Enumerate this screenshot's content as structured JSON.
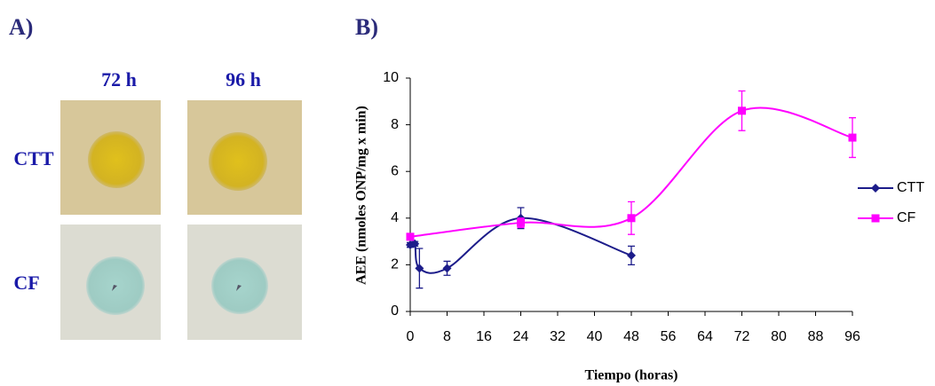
{
  "panel_a": {
    "label": "A)",
    "columns": [
      "72 h",
      "96 h"
    ],
    "rows": [
      "CTT",
      "CF"
    ]
  },
  "chart_data": {
    "type": "line",
    "label": "B)",
    "x_label": "Tiempo (horas)",
    "y_label": "AEE (nmoles ONP/mg x min)",
    "xlim": [
      0,
      96
    ],
    "xticks": [
      0,
      8,
      16,
      24,
      32,
      40,
      48,
      56,
      64,
      72,
      80,
      88,
      96
    ],
    "ylim": [
      0,
      10
    ],
    "yticks": [
      0,
      2,
      4,
      6,
      8,
      10
    ],
    "legend": "right",
    "series": [
      {
        "name": "CTT",
        "color": "#1c1c8a",
        "marker": "diamond",
        "x": [
          0,
          1,
          2,
          8,
          24,
          48
        ],
        "values": [
          2.85,
          2.9,
          1.85,
          1.85,
          4.0,
          2.4
        ],
        "errors": [
          0.1,
          0.1,
          0.85,
          0.3,
          0.45,
          0.4
        ]
      },
      {
        "name": "CF",
        "color": "#ff00ff",
        "marker": "square",
        "x": [
          0,
          24,
          48,
          72,
          96
        ],
        "values": [
          3.2,
          3.8,
          4.0,
          8.6,
          7.45
        ],
        "errors": [
          0.1,
          0.2,
          0.7,
          0.85,
          0.85
        ]
      }
    ]
  }
}
